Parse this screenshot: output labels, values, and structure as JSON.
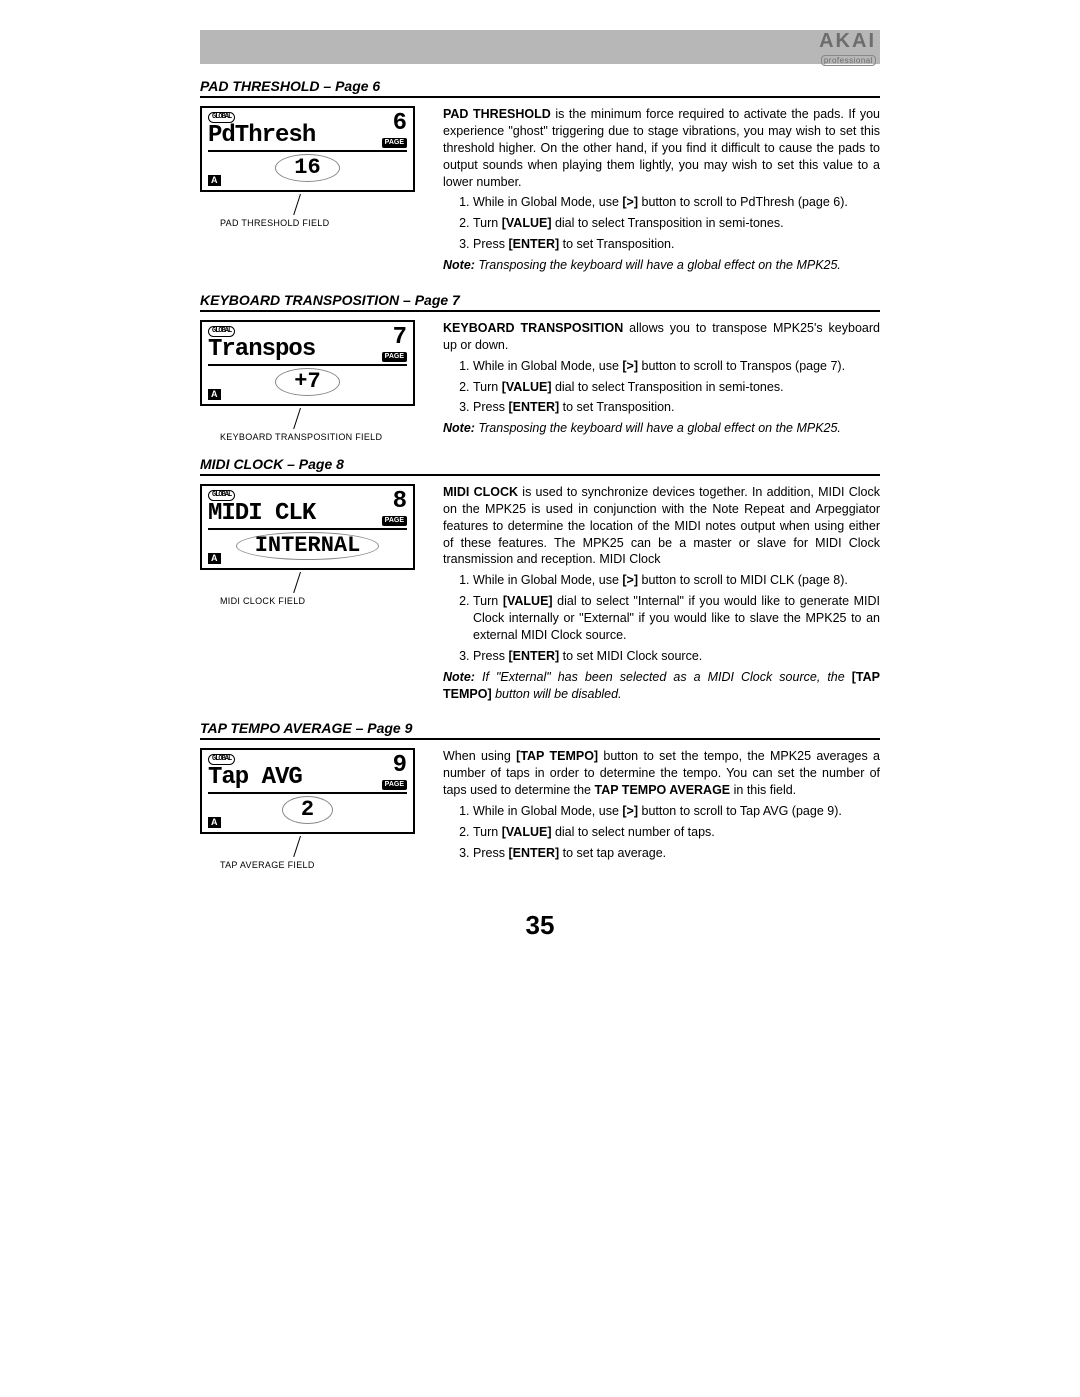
{
  "logo": {
    "brand": "AKAI",
    "sub": "professional"
  },
  "pageNumber": "35",
  "sections": [
    {
      "title": "PAD THRESHOLD – Page 6",
      "lcd": {
        "global": "GLOBAL",
        "name": "PdThresh",
        "page": "6",
        "pageBadge": "PAGE",
        "value": "16",
        "a": "A"
      },
      "caption": "PAD THRESHOLD FIELD",
      "intro": [
        {
          "segments": [
            {
              "t": "PAD THRESHOLD",
              "b": true
            },
            {
              "t": " is the minimum force required to activate the pads. If you experience \"ghost\" triggering due to stage vibrations, you may wish to set this threshold higher.  On the other hand, if you find it difficult to cause the pads to output sounds when playing them lightly, you may wish to set this value to a lower number."
            }
          ]
        }
      ],
      "steps": [
        [
          {
            "t": "While in Global Mode, use "
          },
          {
            "t": "[>]",
            "b": true
          },
          {
            "t": " button to scroll to PdThresh (page 6)."
          }
        ],
        [
          {
            "t": "Turn "
          },
          {
            "t": "[VALUE]",
            "b": true
          },
          {
            "t": " dial to select Transposition in semi-tones."
          }
        ],
        [
          {
            "t": "Press "
          },
          {
            "t": "[ENTER]",
            "b": true
          },
          {
            "t": " to set Transposition."
          }
        ]
      ],
      "note": [
        {
          "t": "Note:",
          "b": true
        },
        {
          "t": "   Transposing the keyboard will have a global effect on the MPK25."
        }
      ]
    },
    {
      "title": "KEYBOARD TRANSPOSITION – Page 7",
      "lcd": {
        "global": "GLOBAL",
        "name": "Transpos",
        "page": "7",
        "pageBadge": "PAGE",
        "value": "+7",
        "a": "A"
      },
      "caption": "KEYBOARD TRANSPOSITION FIELD",
      "intro": [
        {
          "segments": [
            {
              "t": "KEYBOARD TRANSPOSITION",
              "b": true
            },
            {
              "t": " allows you to transpose MPK25's keyboard up or down."
            }
          ]
        }
      ],
      "steps": [
        [
          {
            "t": "While in Global Mode, use "
          },
          {
            "t": "[>]",
            "b": true
          },
          {
            "t": " button to scroll to Transpos (page 7)."
          }
        ],
        [
          {
            "t": "Turn "
          },
          {
            "t": "[VALUE]",
            "b": true
          },
          {
            "t": " dial to select Transposition in semi-tones."
          }
        ],
        [
          {
            "t": "Press "
          },
          {
            "t": "[ENTER]",
            "b": true
          },
          {
            "t": " to set Transposition."
          }
        ]
      ],
      "note": [
        {
          "t": "Note:",
          "b": true
        },
        {
          "t": "   Transposing the keyboard will have a global effect on the MPK25."
        }
      ]
    },
    {
      "title": "MIDI CLOCK – Page 8",
      "lcd": {
        "global": "GLOBAL",
        "name": "MIDI CLK",
        "page": "8",
        "pageBadge": "PAGE",
        "value": "INTERNAL",
        "a": "A"
      },
      "caption": "MIDI CLOCK FIELD",
      "intro": [
        {
          "segments": [
            {
              "t": "MIDI CLOCK",
              "b": true
            },
            {
              "t": " is used to synchronize devices together.  In addition, MIDI Clock on the MPK25 is used in conjunction with the Note Repeat and Arpeggiator features to determine the location of the MIDI notes output when using either of these features.  The MPK25 can be a master or slave for MIDI Clock transmission and reception.  MIDI Clock"
            }
          ]
        }
      ],
      "steps": [
        [
          {
            "t": "While in Global Mode, use "
          },
          {
            "t": "[>]",
            "b": true
          },
          {
            "t": " button to scroll to MIDI CLK (page 8)."
          }
        ],
        [
          {
            "t": "Turn "
          },
          {
            "t": "[VALUE]",
            "b": true
          },
          {
            "t": " dial to select \"Internal\" if you would like to generate MIDI Clock internally or \"External\" if you would like to slave the MPK25 to an external MIDI Clock source."
          }
        ],
        [
          {
            "t": "Press "
          },
          {
            "t": "[ENTER]",
            "b": true
          },
          {
            "t": " to set MIDI Clock source."
          }
        ]
      ],
      "note": [
        {
          "t": "Note:",
          "b": true
        },
        {
          "t": "   If \"External\" has been selected as a MIDI Clock source, the "
        },
        {
          "t": "[TAP TEMPO]",
          "b": true,
          "nonitalic": true
        },
        {
          "t": " button will be disabled."
        }
      ]
    },
    {
      "title": "TAP TEMPO AVERAGE – Page 9",
      "lcd": {
        "global": "GLOBAL",
        "name": "Tap  AVG",
        "page": "9",
        "pageBadge": "PAGE",
        "value": "2",
        "a": "A"
      },
      "caption": "TAP AVERAGE FIELD",
      "intro": [
        {
          "segments": [
            {
              "t": "When using "
            },
            {
              "t": "[TAP TEMPO]",
              "b": true
            },
            {
              "t": " button to set the tempo, the MPK25 averages a number of taps in order to determine the tempo.  You can set the number of taps used to determine the "
            },
            {
              "t": "TAP TEMPO AVERAGE",
              "b": true
            },
            {
              "t": " in this field."
            }
          ]
        }
      ],
      "steps": [
        [
          {
            "t": "While in Global Mode, use "
          },
          {
            "t": "[>]",
            "b": true
          },
          {
            "t": " button to scroll to Tap AVG (page 9)."
          }
        ],
        [
          {
            "t": "Turn "
          },
          {
            "t": "[VALUE]",
            "b": true
          },
          {
            "t": " dial to select number of taps."
          }
        ],
        [
          {
            "t": "Press "
          },
          {
            "t": "[ENTER]",
            "b": true
          },
          {
            "t": " to set tap average."
          }
        ]
      ],
      "note": null
    }
  ]
}
